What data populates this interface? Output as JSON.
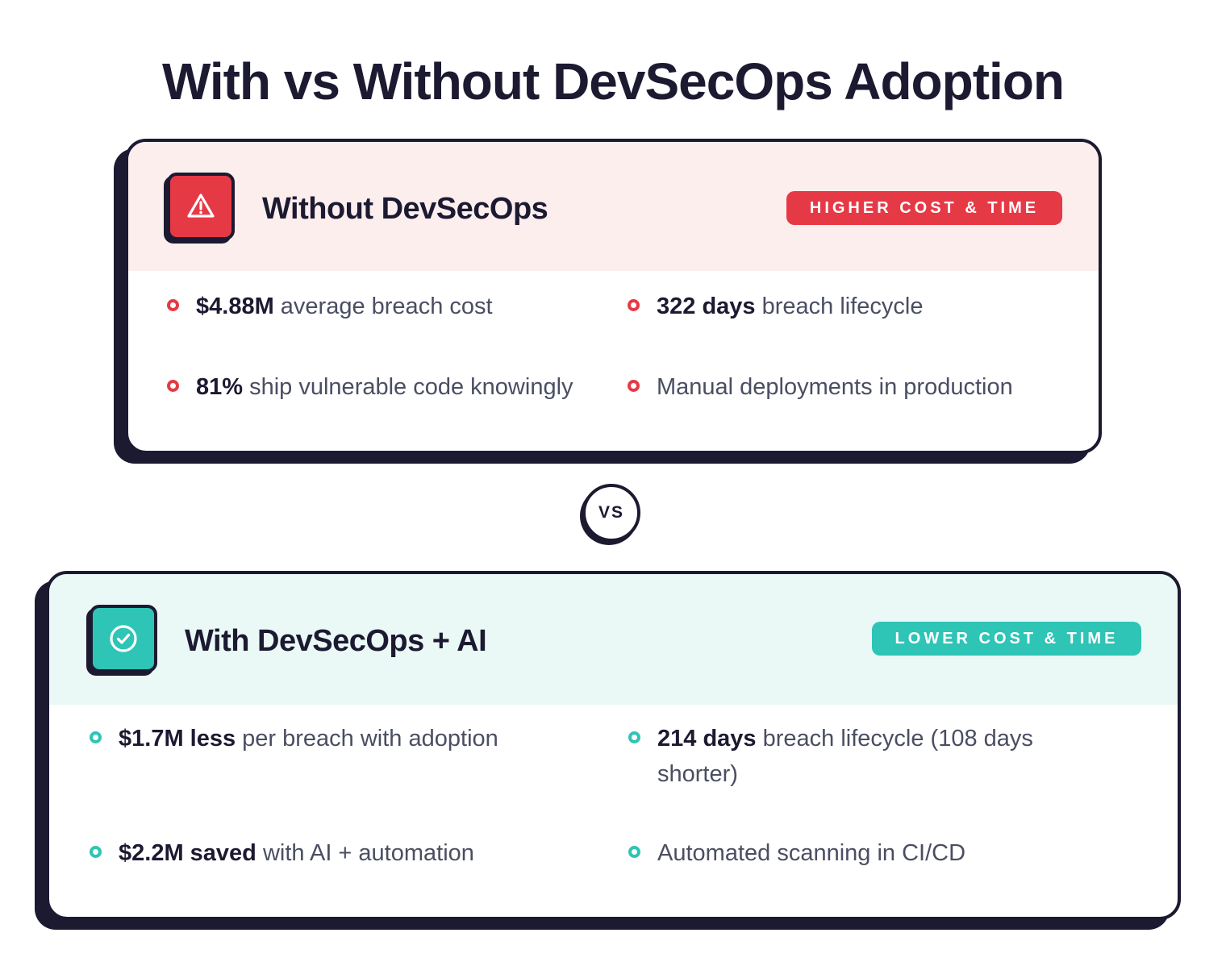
{
  "title": "With vs Without DevSecOps Adoption",
  "vs_label": "VS",
  "colors": {
    "danger": "#e63946",
    "danger_bg": "#fdeeee",
    "success": "#2ec4b6",
    "success_bg": "#eaf9f6",
    "ink": "#1c1a31"
  },
  "without": {
    "icon": "warning-triangle-icon",
    "title": "Without DevSecOps",
    "badge": "HIGHER COST & TIME",
    "items": [
      {
        "bold": "$4.88M",
        "text": " average breach cost"
      },
      {
        "bold": "322 days",
        "text": " breach lifecycle"
      },
      {
        "bold": "81%",
        "text": " ship vulnerable code knowingly"
      },
      {
        "bold": "",
        "text": "Manual deployments in production"
      }
    ]
  },
  "with": {
    "icon": "check-circle-icon",
    "title": "With DevSecOps + AI",
    "badge": "LOWER COST & TIME",
    "items": [
      {
        "bold": "$1.7M less",
        "text": " per breach with adoption"
      },
      {
        "bold": "214 days",
        "text": " breach lifecycle (108 days shorter)"
      },
      {
        "bold": "$2.2M saved",
        "text": " with AI + automation"
      },
      {
        "bold": "",
        "text": "Automated scanning in CI/CD"
      }
    ]
  }
}
